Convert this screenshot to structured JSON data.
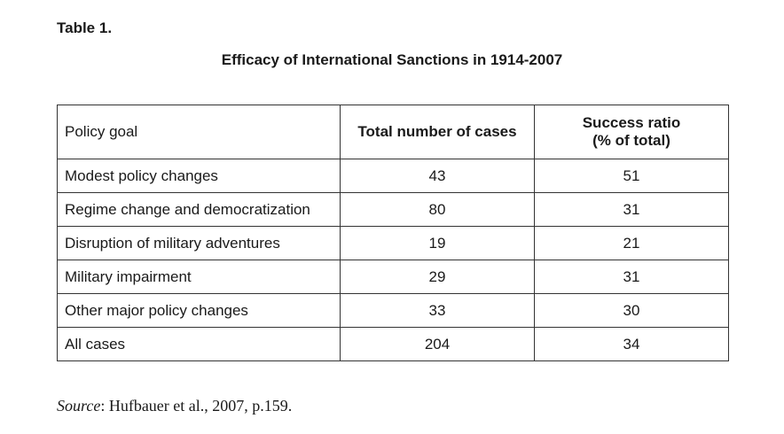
{
  "table_label": "Table 1.",
  "title": "Efficacy of International Sanctions in 1914-2007",
  "columns": {
    "goal": "Policy goal",
    "total": "Total number of cases",
    "ratio_line1": "Success ratio",
    "ratio_line2": "(% of total)"
  },
  "rows": [
    {
      "goal": "Modest policy changes",
      "total": "43",
      "ratio": "51"
    },
    {
      "goal": "Regime change and democratization",
      "total": "80",
      "ratio": "31"
    },
    {
      "goal": "Disruption of military adventures",
      "total": "19",
      "ratio": "21"
    },
    {
      "goal": "Military impairment",
      "total": "29",
      "ratio": "31"
    },
    {
      "goal": "Other major policy changes",
      "total": "33",
      "ratio": "30"
    },
    {
      "goal": "All cases",
      "total": "204",
      "ratio": "34"
    }
  ],
  "source": {
    "label": "Source",
    "text": ": Hufbauer et al., 2007, p.159."
  }
}
